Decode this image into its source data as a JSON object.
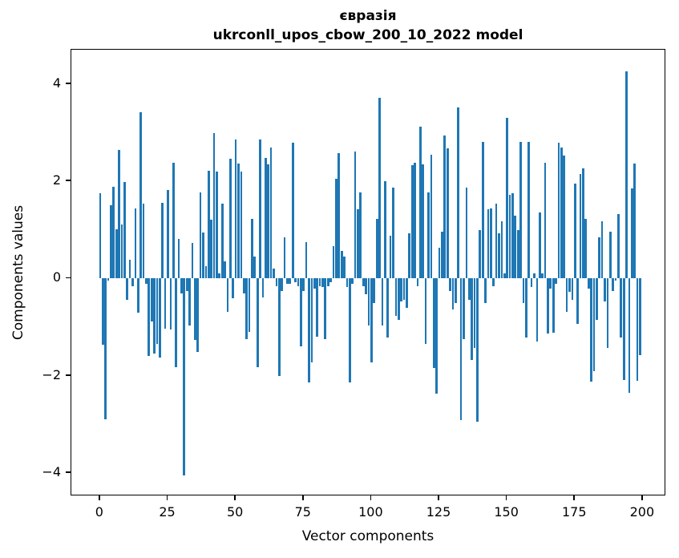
{
  "title": {
    "line1": "євразія",
    "line2": "ukrconll_upos_cbow_200_10_2022 model"
  },
  "axes": {
    "x_label": "Vector components",
    "y_label": "Components values",
    "x_tick_labels": [
      "0",
      "25",
      "50",
      "75",
      "100",
      "125",
      "150",
      "175",
      "200"
    ],
    "y_tick_labels": [
      "−4",
      "−2",
      "0",
      "2",
      "4"
    ]
  },
  "chart_data": {
    "type": "bar",
    "title": "євразія\nukrconll_upos_cbow_200_10_2022 model",
    "xlabel": "Vector components",
    "ylabel": "Components values",
    "x_start": 0,
    "x_step": 1,
    "n_bars": 200,
    "bar_color": "#1f77b4",
    "bar_width": 0.8,
    "grid": false,
    "legend": null,
    "xticks": [
      0,
      25,
      50,
      75,
      100,
      125,
      150,
      175,
      200
    ],
    "yticks": [
      -4,
      -2,
      0,
      2,
      4
    ],
    "xlim": [
      -10.6,
      208.6
    ],
    "ylim": [
      -4.48,
      4.71
    ],
    "values": [
      1.76,
      -1.36,
      -2.89,
      -0.05,
      1.51,
      1.89,
      1.01,
      2.64,
      1.11,
      1.98,
      -0.44,
      0.39,
      -0.15,
      1.44,
      -0.71,
      3.42,
      1.55,
      -0.1,
      -1.6,
      -0.89,
      -1.55,
      -1.34,
      -1.62,
      1.56,
      -1.04,
      1.83,
      -1.05,
      2.39,
      -1.82,
      0.81,
      -0.3,
      -4.05,
      -0.25,
      -0.96,
      0.73,
      -1.27,
      -1.51,
      1.78,
      0.95,
      0.25,
      2.22,
      1.22,
      2.99,
      2.21,
      0.1,
      1.54,
      0.35,
      -0.69,
      2.47,
      -0.41,
      2.87,
      2.36,
      2.2,
      -0.3,
      -1.24,
      -1.1,
      1.23,
      0.45,
      -1.82,
      2.86,
      -0.39,
      2.48,
      2.35,
      2.69,
      0.2,
      -0.15,
      -2.01,
      -0.25,
      0.85,
      -0.1,
      -0.1,
      2.8,
      -0.08,
      -0.15,
      -1.4,
      -0.25,
      0.75,
      -2.13,
      -1.72,
      -0.2,
      -1.2,
      -0.15,
      -0.17,
      -1.24,
      -0.15,
      -0.08,
      0.66,
      2.05,
      2.58,
      0.57,
      0.45,
      -0.17,
      -2.13,
      -0.1,
      2.62,
      1.43,
      1.78,
      -0.15,
      -0.33,
      -0.96,
      -1.73,
      -0.5,
      1.23,
      3.72,
      -0.96,
      2.0,
      -1.21,
      0.88,
      1.88,
      -0.77,
      -0.85,
      -0.47,
      -0.44,
      -0.61,
      0.93,
      2.33,
      2.39,
      -0.15,
      3.12,
      2.35,
      -1.35,
      1.77,
      2.55,
      -1.84,
      -2.37,
      0.63,
      0.96,
      2.95,
      2.68,
      -0.25,
      -0.63,
      -0.51,
      3.53,
      -2.92,
      -1.24,
      1.88,
      -0.44,
      -1.68,
      -1.43,
      -2.94,
      0.99,
      2.81,
      -0.5,
      1.43,
      1.44,
      -0.15,
      1.55,
      0.93,
      1.18,
      0.1,
      3.3,
      1.73,
      1.76,
      1.29,
      0.99,
      2.81,
      -0.5,
      -1.21,
      2.81,
      -0.17,
      0.1,
      -1.29,
      1.36,
      0.1,
      2.39,
      -1.13,
      -0.2,
      -1.12,
      -0.1,
      2.79,
      2.7,
      2.54,
      -0.69,
      -0.27,
      -0.43,
      1.95,
      -0.94,
      2.15,
      2.26,
      1.23,
      -0.2,
      -2.12,
      -1.9,
      -0.85,
      0.85,
      1.18,
      -0.47,
      -1.43,
      0.96,
      -0.25,
      -0.05,
      1.32,
      -1.21,
      -2.08,
      4.26,
      -2.35,
      1.86,
      2.36,
      -2.1,
      -1.58
    ]
  }
}
